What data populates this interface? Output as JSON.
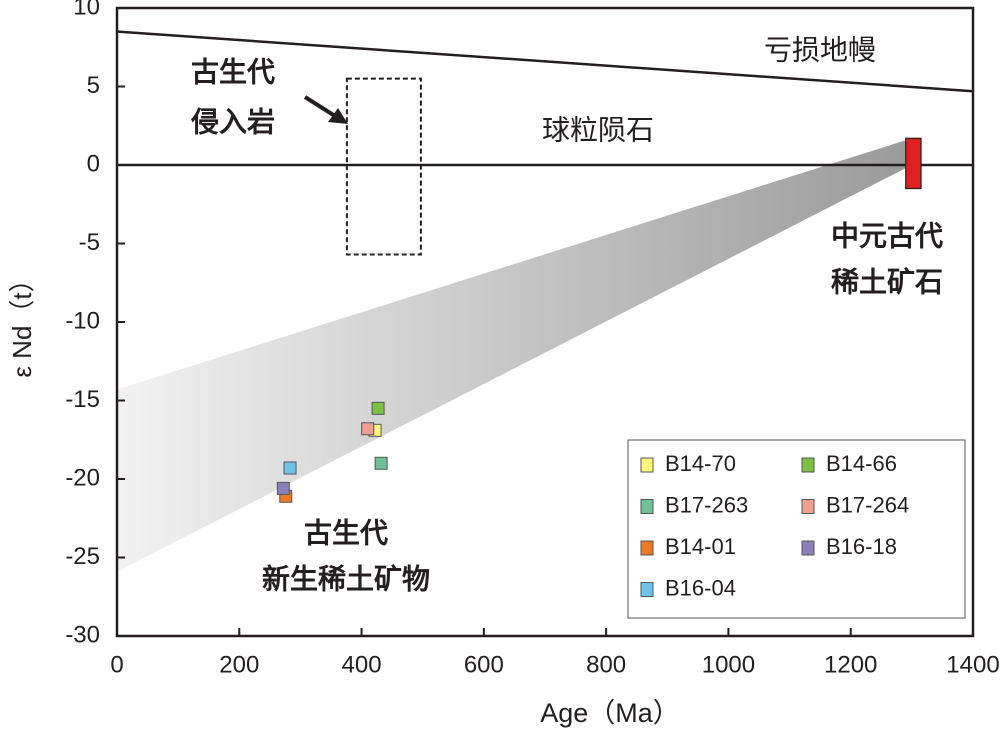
{
  "chart_data": {
    "type": "scatter",
    "x_label": "Age（Ma）",
    "y_label": "ε Nd（t）",
    "xlim": [
      0,
      1400
    ],
    "xticks": [
      0,
      200,
      400,
      600,
      800,
      1000,
      1200,
      1400
    ],
    "ylim": [
      -30,
      10
    ],
    "yticks": [
      10,
      5,
      0,
      -5,
      -10,
      -15,
      -20,
      -25,
      -30
    ],
    "series": [
      {
        "name": "B14-70",
        "color": "#fff77a",
        "x": [
          422
        ],
        "y": [
          -16.9
        ]
      },
      {
        "name": "B14-66",
        "color": "#7cc242",
        "x": [
          427
        ],
        "y": [
          -15.5
        ]
      },
      {
        "name": "B17-263",
        "color": "#6fc296",
        "x": [
          432
        ],
        "y": [
          -19.0
        ]
      },
      {
        "name": "B17-264",
        "color": "#f0a08c",
        "x": [
          410
        ],
        "y": [
          -16.8
        ]
      },
      {
        "name": "B14-01",
        "color": "#ee7b24",
        "x": [
          276
        ],
        "y": [
          -21.1
        ]
      },
      {
        "name": "B16-18",
        "color": "#8b80bd",
        "x": [
          272
        ],
        "y": [
          -20.6
        ]
      },
      {
        "name": "B16-04",
        "color": "#6ec3ea",
        "x": [
          283
        ],
        "y": [
          -19.3
        ]
      }
    ],
    "lines": [
      {
        "label": "亏损地幔",
        "x": [
          0,
          1400
        ],
        "y": [
          8.5,
          4.7
        ]
      },
      {
        "label": "球粒陨石",
        "x": [
          0,
          1400
        ],
        "y": [
          0,
          0
        ]
      }
    ],
    "band": {
      "x": [
        0,
        1300,
        1300,
        0
      ],
      "y": [
        -14.3,
        1.7,
        0,
        -25.9
      ]
    },
    "bar": {
      "color": "#e0201f",
      "x": [
        1290,
        1315
      ],
      "y": [
        -1.5,
        1.7
      ]
    },
    "regions": [
      {
        "x": [
          376,
          497
        ],
        "y": [
          5.5,
          -5.7
        ]
      }
    ],
    "annotations": [
      "古生代",
      "侵入岩",
      "中元古代",
      "稀土矿石",
      "古生代",
      "新生稀土矿物"
    ]
  }
}
